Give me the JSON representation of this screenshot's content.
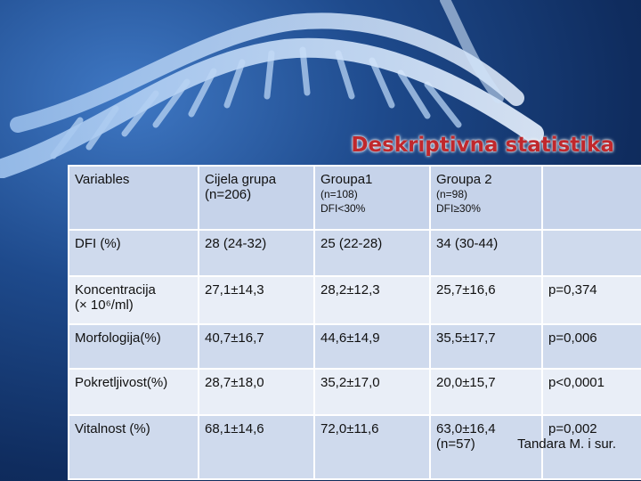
{
  "title": "Deskriptivna statistika",
  "header": {
    "c1": "Variables",
    "c2": [
      "Cijela grupa",
      "(n=206)"
    ],
    "c3": [
      "Groupa1",
      "(n=108)",
      "DFI<30%"
    ],
    "c4": [
      "Groupa 2",
      "(n=98)",
      "DFI≥30%"
    ],
    "c5": ""
  },
  "rows": [
    {
      "var": "DFI (%)",
      "all": "28 (24-32)",
      "g1": "25 (22-28)",
      "g2": "34 (30-44)",
      "g2_extra": "",
      "p": ""
    },
    {
      "var": "Koncentracija",
      "var_line2": "(× 10⁶/ml)",
      "all": "27,1±14,3",
      "g1": "28,2±12,3",
      "g2": "25,7±16,6",
      "g2_extra": "",
      "p": "p=0,374"
    },
    {
      "var": "Morfologija(%)",
      "all": "40,7±16,7",
      "g1": "44,6±14,9",
      "g2": "35,5±17,7",
      "g2_extra": "",
      "p": "p=0,006"
    },
    {
      "var": "Pokretljivost(%)",
      "all": "28,7±18,0",
      "g1": "35,2±17,0",
      "g2": "20,0±15,7",
      "g2_extra": "",
      "p": "p<0,0001"
    },
    {
      "var": "Vitalnost (%)",
      "all": "68,1±14,6",
      "g1": "72,0±11,6",
      "g2": "63,0±16,4",
      "g2_extra": "(n=57)",
      "p": "p=0,002"
    }
  ],
  "source": "Tandara M. i sur."
}
